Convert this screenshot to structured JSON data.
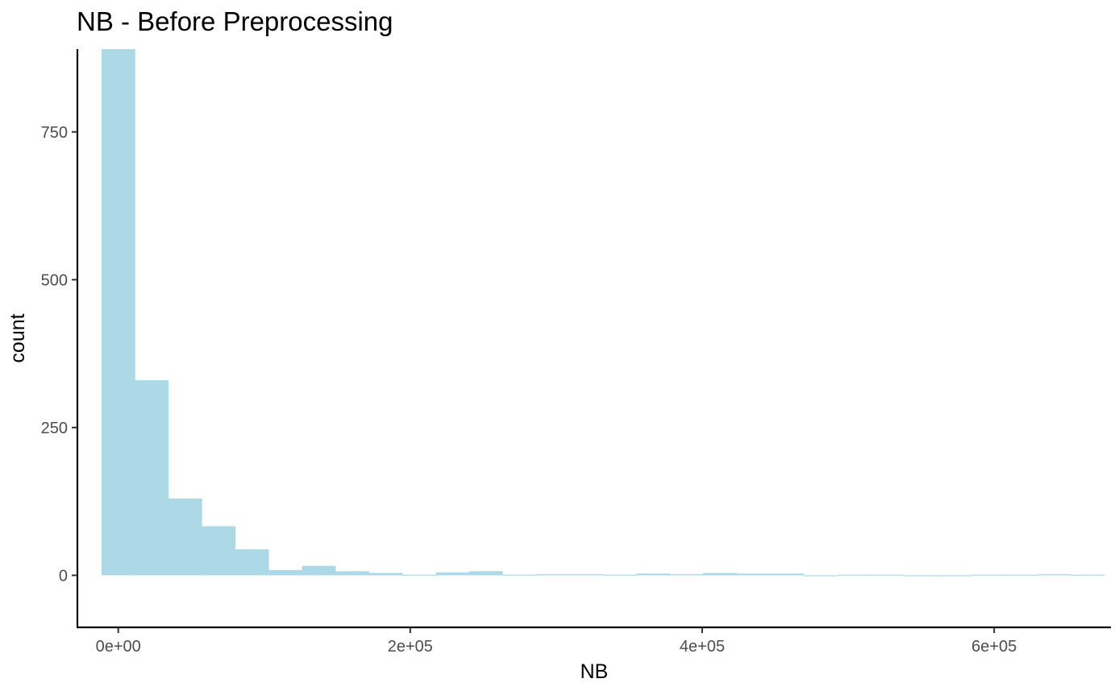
{
  "chart_data": {
    "type": "bar",
    "subtype": "histogram",
    "title": "NB - Before Preprocessing",
    "xlabel": "NB",
    "ylabel": "count",
    "bar_color": "#add8e6",
    "grid": false,
    "legend": "none",
    "xlim": [
      -28000,
      680000
    ],
    "ylim": [
      -88,
      890
    ],
    "bin_width": 22900,
    "bins": [
      {
        "x_start": -11450,
        "count": 890
      },
      {
        "x_start": 11450,
        "count": 330
      },
      {
        "x_start": 34350,
        "count": 130
      },
      {
        "x_start": 57250,
        "count": 83
      },
      {
        "x_start": 80150,
        "count": 44
      },
      {
        "x_start": 103050,
        "count": 9
      },
      {
        "x_start": 125950,
        "count": 16
      },
      {
        "x_start": 148850,
        "count": 7
      },
      {
        "x_start": 171750,
        "count": 4
      },
      {
        "x_start": 194650,
        "count": 1
      },
      {
        "x_start": 217550,
        "count": 5
      },
      {
        "x_start": 240450,
        "count": 7
      },
      {
        "x_start": 263350,
        "count": 1
      },
      {
        "x_start": 286250,
        "count": 2
      },
      {
        "x_start": 309150,
        "count": 2
      },
      {
        "x_start": 332050,
        "count": 1
      },
      {
        "x_start": 354950,
        "count": 3
      },
      {
        "x_start": 377850,
        "count": 2
      },
      {
        "x_start": 400750,
        "count": 4
      },
      {
        "x_start": 423650,
        "count": 3
      },
      {
        "x_start": 446550,
        "count": 3
      },
      {
        "x_start": 469450,
        "count": 0
      },
      {
        "x_start": 492350,
        "count": 1
      },
      {
        "x_start": 515250,
        "count": 1
      },
      {
        "x_start": 538150,
        "count": 0
      },
      {
        "x_start": 561050,
        "count": 0
      },
      {
        "x_start": 583950,
        "count": 1
      },
      {
        "x_start": 606850,
        "count": 1
      },
      {
        "x_start": 629750,
        "count": 2
      },
      {
        "x_start": 652650,
        "count": 1
      }
    ],
    "x_ticks": [
      {
        "value": 0,
        "label": "0e+00"
      },
      {
        "value": 200000,
        "label": "2e+05"
      },
      {
        "value": 400000,
        "label": "4e+05"
      },
      {
        "value": 600000,
        "label": "6e+05"
      }
    ],
    "y_ticks": [
      {
        "value": 0,
        "label": "0"
      },
      {
        "value": 250,
        "label": "250"
      },
      {
        "value": 500,
        "label": "500"
      },
      {
        "value": 750,
        "label": "750"
      }
    ]
  }
}
